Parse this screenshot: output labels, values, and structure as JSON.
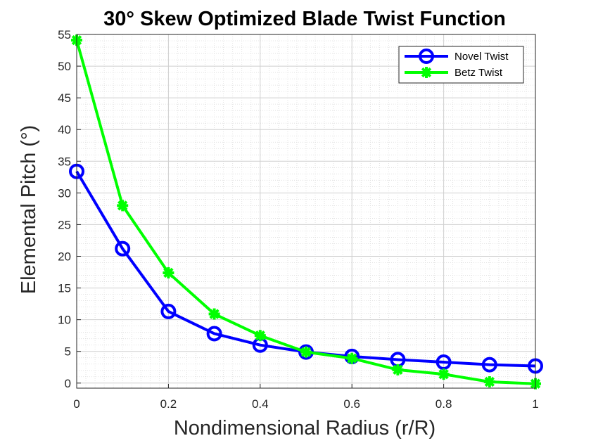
{
  "chart_data": {
    "type": "line",
    "title": "30° Skew Optimized Blade Twist Function",
    "xlabel": "Nondimensional Radius (r/R)",
    "ylabel": "Elemental Pitch (°)",
    "xlim": [
      0,
      1
    ],
    "ylim": [
      -0.8,
      55
    ],
    "x_ticks": [
      0,
      0.2,
      0.4,
      0.6,
      0.8,
      1
    ],
    "x_tick_labels": [
      "0",
      "0.2",
      "0.4",
      "0.6",
      "0.8",
      "1"
    ],
    "y_ticks": [
      0,
      5,
      10,
      15,
      20,
      25,
      30,
      35,
      40,
      45,
      50,
      55
    ],
    "y_tick_labels": [
      "0",
      "5",
      "10",
      "15",
      "20",
      "25",
      "30",
      "35",
      "40",
      "45",
      "50",
      "55"
    ],
    "grid": "major and minor",
    "legend_position": "top-right",
    "x": [
      0,
      0.1,
      0.2,
      0.3,
      0.4,
      0.5,
      0.6,
      0.7,
      0.8,
      0.9,
      1
    ],
    "series": [
      {
        "name": "Novel Twist",
        "color": "#0000ff",
        "marker": "circle",
        "values": [
          33.4,
          21.2,
          11.3,
          7.8,
          6.0,
          4.9,
          4.2,
          3.7,
          3.3,
          2.9,
          2.7
        ]
      },
      {
        "name": "Betz Twist",
        "color": "#00ff00",
        "marker": "asterisk",
        "values": [
          54.1,
          28.0,
          17.4,
          10.9,
          7.5,
          4.9,
          3.9,
          2.1,
          1.4,
          0.2,
          -0.1
        ]
      }
    ]
  }
}
